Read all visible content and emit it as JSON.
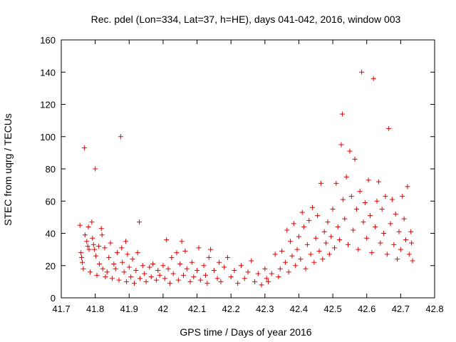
{
  "chart_data": {
    "type": "scatter",
    "title": "Rec. pdel (Lon=334, Lat=37, h=HE), days 041-042, 2016, window 003",
    "xlabel": "GPS time / Days of year 2016",
    "ylabel": "STEC from uqrg / TECUs",
    "xlim": [
      41.7,
      42.8
    ],
    "ylim": [
      0,
      160
    ],
    "x_ticks": [
      "41.7",
      "41.8",
      "41.9",
      "42",
      "42.1",
      "42.2",
      "42.3",
      "42.4",
      "42.5",
      "42.6",
      "42.7",
      "42.8"
    ],
    "y_ticks": [
      "0",
      "20",
      "40",
      "60",
      "80",
      "100",
      "120",
      "140",
      "160"
    ],
    "grid": false,
    "marker": "+",
    "color": "#e00000",
    "points": [
      [
        41.755,
        45
      ],
      [
        41.758,
        28
      ],
      [
        41.76,
        25
      ],
      [
        41.762,
        22
      ],
      [
        41.765,
        18
      ],
      [
        41.768,
        93
      ],
      [
        41.77,
        39
      ],
      [
        41.775,
        35
      ],
      [
        41.778,
        32
      ],
      [
        41.78,
        44
      ],
      [
        41.782,
        30
      ],
      [
        41.785,
        16
      ],
      [
        41.79,
        47
      ],
      [
        41.792,
        37
      ],
      [
        41.795,
        33
      ],
      [
        41.798,
        30
      ],
      [
        41.8,
        80
      ],
      [
        41.802,
        26
      ],
      [
        41.805,
        14
      ],
      [
        41.81,
        32
      ],
      [
        41.812,
        21
      ],
      [
        41.818,
        43
      ],
      [
        41.82,
        39
      ],
      [
        41.822,
        18
      ],
      [
        41.828,
        31
      ],
      [
        41.83,
        13
      ],
      [
        41.835,
        16
      ],
      [
        41.84,
        25
      ],
      [
        41.845,
        34
      ],
      [
        41.85,
        12
      ],
      [
        41.855,
        21
      ],
      [
        41.86,
        18
      ],
      [
        41.865,
        28
      ],
      [
        41.87,
        11
      ],
      [
        41.875,
        100
      ],
      [
        41.878,
        31
      ],
      [
        41.88,
        22
      ],
      [
        41.885,
        16
      ],
      [
        41.89,
        35
      ],
      [
        41.892,
        10
      ],
      [
        41.895,
        27
      ],
      [
        41.9,
        19
      ],
      [
        41.905,
        13
      ],
      [
        41.91,
        24
      ],
      [
        41.915,
        9
      ],
      [
        41.92,
        17
      ],
      [
        41.925,
        28
      ],
      [
        41.93,
        47
      ],
      [
        41.932,
        12
      ],
      [
        41.94,
        20
      ],
      [
        41.945,
        15
      ],
      [
        41.95,
        10
      ],
      [
        41.96,
        19
      ],
      [
        41.965,
        13
      ],
      [
        41.97,
        21
      ],
      [
        41.98,
        11
      ],
      [
        41.985,
        17
      ],
      [
        41.99,
        14
      ],
      [
        42.0,
        20
      ],
      [
        42.005,
        12
      ],
      [
        42.01,
        36
      ],
      [
        42.015,
        18
      ],
      [
        42.02,
        9
      ],
      [
        42.025,
        25
      ],
      [
        42.03,
        15
      ],
      [
        42.04,
        28
      ],
      [
        42.045,
        11
      ],
      [
        42.05,
        21
      ],
      [
        42.055,
        35
      ],
      [
        42.06,
        14
      ],
      [
        42.065,
        29
      ],
      [
        42.07,
        18
      ],
      [
        42.08,
        10
      ],
      [
        42.085,
        22
      ],
      [
        42.09,
        13
      ],
      [
        42.1,
        17
      ],
      [
        42.105,
        31
      ],
      [
        42.11,
        11
      ],
      [
        42.12,
        20
      ],
      [
        42.125,
        14
      ],
      [
        42.13,
        9
      ],
      [
        42.135,
        25
      ],
      [
        42.14,
        30
      ],
      [
        42.15,
        17
      ],
      [
        42.16,
        12
      ],
      [
        42.165,
        22
      ],
      [
        42.17,
        10
      ],
      [
        42.18,
        19
      ],
      [
        42.19,
        25
      ],
      [
        42.2,
        13
      ],
      [
        42.21,
        17
      ],
      [
        42.22,
        9
      ],
      [
        42.23,
        20
      ],
      [
        42.24,
        12
      ],
      [
        42.25,
        16
      ],
      [
        42.26,
        23
      ],
      [
        42.27,
        10
      ],
      [
        42.28,
        15
      ],
      [
        42.29,
        8
      ],
      [
        42.3,
        18
      ],
      [
        42.305,
        12
      ],
      [
        42.31,
        10
      ],
      [
        42.32,
        15
      ],
      [
        42.33,
        27
      ],
      [
        42.34,
        13
      ],
      [
        42.345,
        18
      ],
      [
        42.35,
        29
      ],
      [
        42.36,
        22
      ],
      [
        42.365,
        42
      ],
      [
        42.37,
        16
      ],
      [
        42.375,
        35
      ],
      [
        42.38,
        26
      ],
      [
        42.385,
        46
      ],
      [
        42.39,
        20
      ],
      [
        42.395,
        30
      ],
      [
        42.4,
        38
      ],
      [
        42.405,
        24
      ],
      [
        42.41,
        53
      ],
      [
        42.415,
        44
      ],
      [
        42.42,
        18
      ],
      [
        42.425,
        33
      ],
      [
        42.43,
        48
      ],
      [
        42.435,
        27
      ],
      [
        42.44,
        56
      ],
      [
        42.445,
        22
      ],
      [
        42.45,
        37
      ],
      [
        42.455,
        51
      ],
      [
        42.46,
        29
      ],
      [
        42.465,
        71
      ],
      [
        42.47,
        24
      ],
      [
        42.475,
        41
      ],
      [
        42.48,
        34
      ],
      [
        42.485,
        47
      ],
      [
        42.49,
        27
      ],
      [
        42.495,
        38
      ],
      [
        42.5,
        55
      ],
      [
        42.505,
        31
      ],
      [
        42.51,
        71
      ],
      [
        42.515,
        44
      ],
      [
        42.52,
        36
      ],
      [
        42.525,
        95
      ],
      [
        42.528,
        114
      ],
      [
        42.53,
        61
      ],
      [
        42.535,
        49
      ],
      [
        42.54,
        75
      ],
      [
        42.545,
        33
      ],
      [
        42.55,
        91
      ],
      [
        42.555,
        63
      ],
      [
        42.56,
        42
      ],
      [
        42.565,
        86
      ],
      [
        42.57,
        55
      ],
      [
        42.575,
        30
      ],
      [
        42.58,
        66
      ],
      [
        42.585,
        140
      ],
      [
        42.59,
        47
      ],
      [
        42.595,
        59
      ],
      [
        42.6,
        37
      ],
      [
        42.605,
        73
      ],
      [
        42.61,
        51
      ],
      [
        42.615,
        28
      ],
      [
        42.62,
        136
      ],
      [
        42.625,
        44
      ],
      [
        42.63,
        60
      ],
      [
        42.635,
        72
      ],
      [
        42.64,
        34
      ],
      [
        42.645,
        55
      ],
      [
        42.65,
        40
      ],
      [
        42.655,
        63
      ],
      [
        42.66,
        27
      ],
      [
        42.665,
        105
      ],
      [
        42.67,
        46
      ],
      [
        42.675,
        61
      ],
      [
        42.68,
        33
      ],
      [
        42.685,
        52
      ],
      [
        42.69,
        24
      ],
      [
        42.695,
        41
      ],
      [
        42.7,
        30
      ],
      [
        42.705,
        63
      ],
      [
        42.71,
        49
      ],
      [
        42.715,
        36
      ],
      [
        42.72,
        69
      ],
      [
        42.725,
        27
      ],
      [
        42.73,
        41
      ],
      [
        42.732,
        34
      ],
      [
        42.735,
        23
      ]
    ]
  }
}
